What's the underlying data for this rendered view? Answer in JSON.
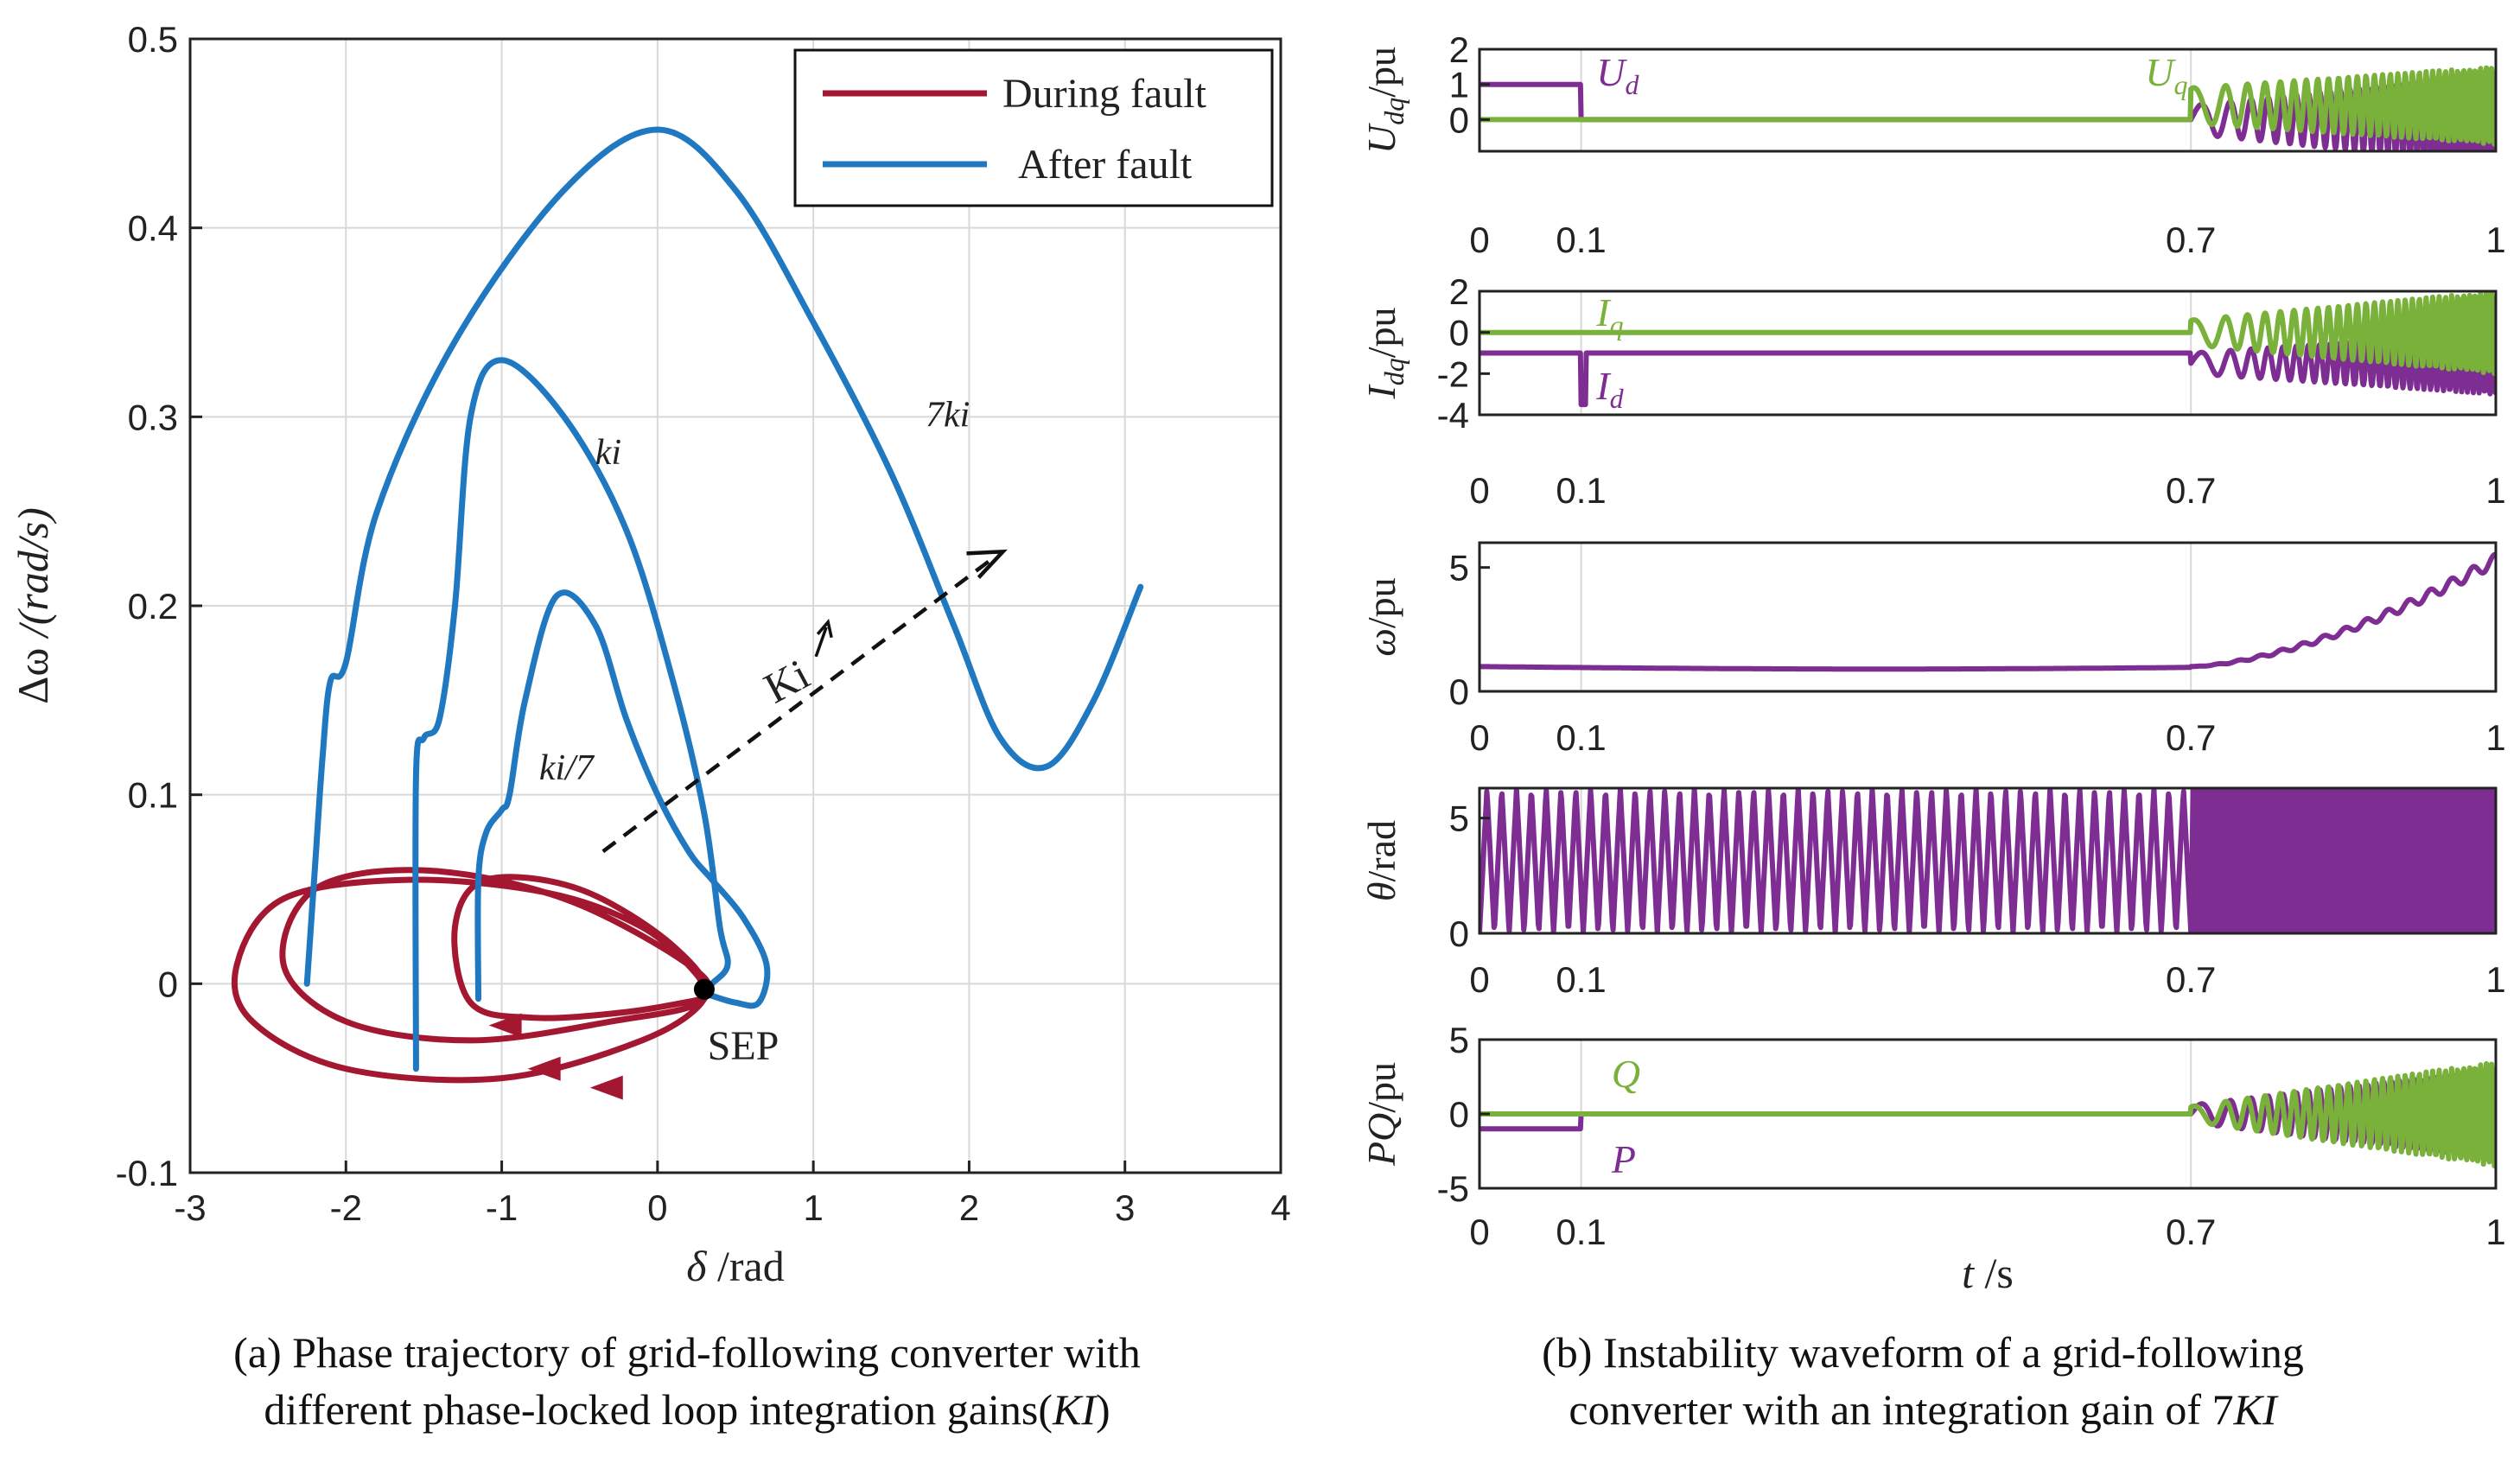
{
  "colors": {
    "fault": "#a31730",
    "after": "#1f78c0",
    "purple": "#7e2d92",
    "green": "#79b13a",
    "grid": "#d8d8d8",
    "axis": "#222222"
  },
  "chart_data": [
    {
      "id": "a",
      "type": "line",
      "xlabel_greek": "δ",
      "xlabel_unit": " /rad",
      "ylabel_greek": "Δω",
      "ylabel_unit": " /(rad/s)",
      "xlim": [
        -3,
        4
      ],
      "ylim": [
        -0.1,
        0.5
      ],
      "xticks": [
        -3,
        -2,
        -1,
        0,
        1,
        2,
        3,
        4
      ],
      "xtick_labels": [
        "-3",
        "-2",
        "-1",
        "0",
        "1",
        "2",
        "3",
        "4"
      ],
      "yticks": [
        -0.1,
        0,
        0.1,
        0.2,
        0.3,
        0.4,
        0.5
      ],
      "ytick_labels": [
        "-0.1",
        "0",
        "0.1",
        "0.2",
        "0.3",
        "0.4",
        "0.5"
      ],
      "grid": true,
      "legend": {
        "position": "top-right",
        "entries": [
          "During fault",
          "After fault"
        ]
      },
      "series": [
        {
          "name": "During fault",
          "label": "",
          "points": [
            [
              0.3,
              -0.008
            ],
            [
              -0.2,
              -0.015
            ],
            [
              -0.8,
              -0.018
            ],
            [
              -1.2,
              -0.01
            ],
            [
              -1.3,
              0.03
            ],
            [
              -1.1,
              0.055
            ],
            [
              -0.5,
              0.05
            ],
            [
              0.1,
              0.02
            ],
            [
              0.3,
              -0.008
            ],
            [
              -0.3,
              -0.02
            ],
            [
              -1.2,
              -0.03
            ],
            [
              -2.0,
              -0.02
            ],
            [
              -2.4,
              0.01
            ],
            [
              -2.2,
              0.05
            ],
            [
              -1.5,
              0.06
            ],
            [
              -0.6,
              0.045
            ],
            [
              0.2,
              0.01
            ],
            [
              0.3,
              -0.008
            ],
            [
              -0.1,
              -0.03
            ],
            [
              -1.0,
              -0.05
            ],
            [
              -2.0,
              -0.045
            ],
            [
              -2.6,
              -0.02
            ],
            [
              -2.7,
              0.01
            ],
            [
              -2.4,
              0.045
            ],
            [
              -1.6,
              0.055
            ],
            [
              -0.7,
              0.048
            ],
            [
              -0.1,
              0.03
            ],
            [
              0.25,
              0.005
            ],
            [
              0.3,
              -0.008
            ]
          ]
        },
        {
          "name": "After fault",
          "label": "ki/7",
          "points": [
            [
              -1.15,
              -0.008
            ],
            [
              -1.15,
              0.055
            ],
            [
              -1.1,
              0.08
            ],
            [
              -1.0,
              0.092
            ],
            [
              -0.95,
              0.1
            ],
            [
              -0.85,
              0.15
            ],
            [
              -0.65,
              0.205
            ],
            [
              -0.4,
              0.19
            ],
            [
              -0.2,
              0.14
            ],
            [
              0.0,
              0.1
            ],
            [
              0.2,
              0.07
            ],
            [
              0.35,
              0.055
            ],
            [
              0.55,
              0.035
            ],
            [
              0.7,
              0.01
            ],
            [
              0.65,
              -0.01
            ],
            [
              0.5,
              -0.01
            ],
            [
              0.3,
              -0.005
            ]
          ]
        },
        {
          "name": "After fault",
          "label": "ki",
          "points": [
            [
              -1.55,
              -0.045
            ],
            [
              -1.55,
              0.11
            ],
            [
              -1.5,
              0.13
            ],
            [
              -1.4,
              0.14
            ],
            [
              -1.3,
              0.2
            ],
            [
              -1.2,
              0.3
            ],
            [
              -1.0,
              0.33
            ],
            [
              -0.6,
              0.3
            ],
            [
              -0.2,
              0.24
            ],
            [
              0.1,
              0.16
            ],
            [
              0.3,
              0.09
            ],
            [
              0.4,
              0.03
            ],
            [
              0.45,
              0.01
            ],
            [
              0.35,
              0.0
            ],
            [
              0.3,
              -0.005
            ]
          ]
        },
        {
          "name": "After fault",
          "label": "7ki",
          "points": [
            [
              -2.25,
              0.0
            ],
            [
              -2.2,
              0.06
            ],
            [
              -2.15,
              0.12
            ],
            [
              -2.1,
              0.16
            ],
            [
              -2.0,
              0.17
            ],
            [
              -1.8,
              0.25
            ],
            [
              -1.3,
              0.34
            ],
            [
              -0.6,
              0.42
            ],
            [
              0.0,
              0.452
            ],
            [
              0.5,
              0.42
            ],
            [
              1.0,
              0.35
            ],
            [
              1.5,
              0.27
            ],
            [
              1.9,
              0.19
            ],
            [
              2.2,
              0.13
            ],
            [
              2.5,
              0.115
            ],
            [
              2.8,
              0.15
            ],
            [
              3.1,
              0.21
            ]
          ]
        }
      ],
      "labels": {
        "ki": "ki",
        "ki7": "ki/7",
        "k7": "7ki",
        "Ki": "Ki",
        "SEP": "SEP"
      },
      "sep_point": [
        0.3,
        -0.003
      ]
    },
    {
      "id": "b",
      "type": "line",
      "shared_x": {
        "ticks": [
          0,
          0.1,
          0.7,
          1
        ],
        "tick_labels": [
          "0",
          "0.1",
          "0.7",
          "1"
        ],
        "xlim": [
          0,
          1
        ],
        "xlabel_greek": "t",
        "xlabel_unit": " /s"
      },
      "subplots": [
        {
          "ylabel": "U",
          "ysub": "dq",
          "yunit": "/pu",
          "ylim": [
            -0.9,
            2
          ],
          "yticks": [
            0,
            1,
            2
          ],
          "ytick_labels": [
            "0",
            "1",
            "2"
          ],
          "series": [
            {
              "name": "Ud",
              "color": "purple",
              "prefault": 1,
              "fault": 0,
              "post_center": 0,
              "post_amp_start": 0.4,
              "post_amp_end": 1.3
            },
            {
              "name": "Uq",
              "color": "green",
              "prefault": 0,
              "fault": 0,
              "post_center": 0.4,
              "post_amp_start": 0.5,
              "post_amp_end": 1.1
            }
          ],
          "labels": [
            {
              "text": "U",
              "sub": "d",
              "color": "purple"
            },
            {
              "text": "U",
              "sub": "q",
              "color": "green"
            }
          ]
        },
        {
          "ylabel": "I",
          "ysub": "dq",
          "yunit": "/pu",
          "ylim": [
            -4,
            2
          ],
          "yticks": [
            -4,
            -2,
            0,
            2
          ],
          "ytick_labels": [
            "-4",
            "-2",
            "0",
            "2"
          ],
          "series": [
            {
              "name": "Id",
              "color": "purple",
              "prefault": -1,
              "fault": -1,
              "post_center": -1.5,
              "post_amp_start": 0.5,
              "post_amp_end": 1.5
            },
            {
              "name": "Iq",
              "color": "green",
              "prefault": 0,
              "fault": 0,
              "post_center": 0,
              "post_amp_start": 0.6,
              "post_amp_end": 2
            }
          ],
          "labels": [
            {
              "text": "I",
              "sub": "q",
              "color": "green"
            },
            {
              "text": "I",
              "sub": "d",
              "color": "purple"
            }
          ]
        },
        {
          "ylabel": "ω",
          "ysub": "",
          "yunit": "/pu",
          "ylim": [
            0,
            6
          ],
          "yticks": [
            0,
            5
          ],
          "ytick_labels": [
            "0",
            "5"
          ],
          "series": [
            {
              "name": "omega",
              "color": "purple",
              "kind": "growth",
              "start": 1,
              "end": 5.3
            }
          ],
          "labels": []
        },
        {
          "ylabel": "θ",
          "ysub": "",
          "yunit": "/rad",
          "ylim": [
            0,
            6.3
          ],
          "yticks": [
            0,
            5
          ],
          "ytick_labels": [
            "0",
            "5"
          ],
          "series": [
            {
              "name": "theta",
              "color": "purple",
              "kind": "sawtooth",
              "cycles_pre": 48,
              "cycles_post": 70
            }
          ],
          "labels": []
        },
        {
          "ylabel": "PQ",
          "ysub": "",
          "yunit": "/pu",
          "ylim": [
            -5,
            5
          ],
          "yticks": [
            -5,
            0,
            5
          ],
          "ytick_labels": [
            "-5",
            "0",
            "5"
          ],
          "series": [
            {
              "name": "P",
              "color": "purple",
              "prefault": -1,
              "fault": 0,
              "post_center": 0,
              "post_amp_start": 0.6,
              "post_amp_end": 3
            },
            {
              "name": "Q",
              "color": "green",
              "prefault": 0,
              "fault": 0,
              "post_center": 0,
              "post_amp_start": 0.5,
              "post_amp_end": 3.5
            }
          ],
          "labels": [
            {
              "text": "Q",
              "sub": "",
              "color": "green"
            },
            {
              "text": "P",
              "sub": "",
              "color": "purple"
            }
          ]
        }
      ]
    }
  ],
  "captions": {
    "a_line1": "(a) Phase trajectory of  grid-following converter with",
    "a_line2": "different phase-locked loop integration gains(",
    "a_line2_it": "KI",
    "a_line2_end": ")",
    "b_line1": "(b) Instability waveform of a grid-following",
    "b_line2": "converter with an integration gain of 7",
    "b_line2_it": "KI"
  }
}
